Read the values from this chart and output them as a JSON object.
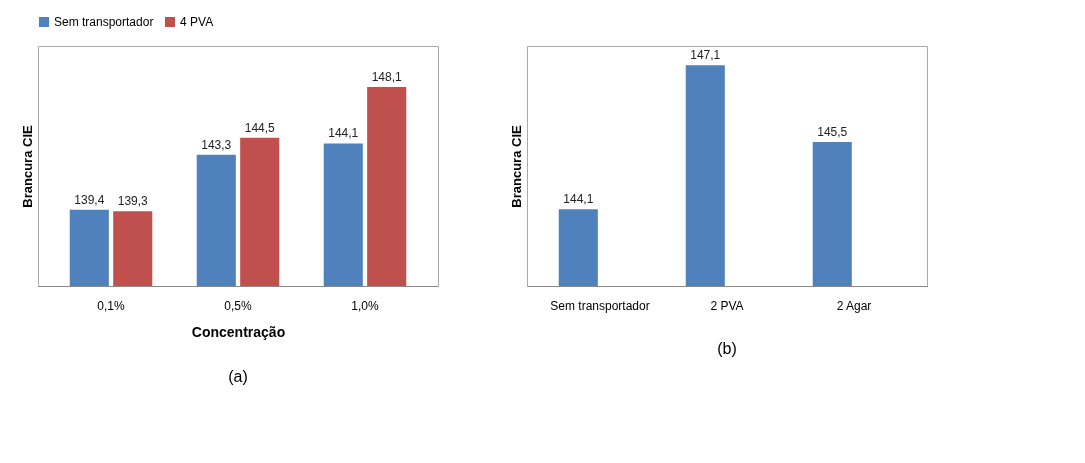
{
  "chart_data": [
    {
      "type": "bar",
      "xlabel": "Concentração",
      "ylabel": "Brancura CIE",
      "categories": [
        "0,1%",
        "0,5%",
        "1,0%"
      ],
      "series": [
        {
          "name": "Sem transportador",
          "color": "#4f81bd",
          "values": [
            139.4,
            143.3,
            144.1
          ],
          "value_labels": [
            "139,4",
            "143,3",
            "144,1"
          ]
        },
        {
          "name": "4 PVA",
          "color": "#c0504d",
          "values": [
            139.3,
            144.5,
            148.1
          ],
          "value_labels": [
            "139,3",
            "144,5",
            "148,1"
          ]
        }
      ],
      "ylim": [
        134,
        151
      ],
      "tick_labels": "x",
      "legend": "top",
      "annotations": [
        "(a)"
      ]
    },
    {
      "type": "bar",
      "ylabel": "Brancura CIE",
      "categories": [
        "Sem transportador",
        "2 PVA",
        "2 Agar"
      ],
      "series": [
        {
          "color": "#4f81bd",
          "values": [
            144.1,
            147.1,
            145.5
          ],
          "value_labels": [
            "144,1",
            "147,1",
            "145,5"
          ]
        }
      ],
      "ylim": [
        142.5,
        147.5
      ],
      "tick_labels": "x",
      "annotations": [
        "(b)"
      ]
    }
  ]
}
